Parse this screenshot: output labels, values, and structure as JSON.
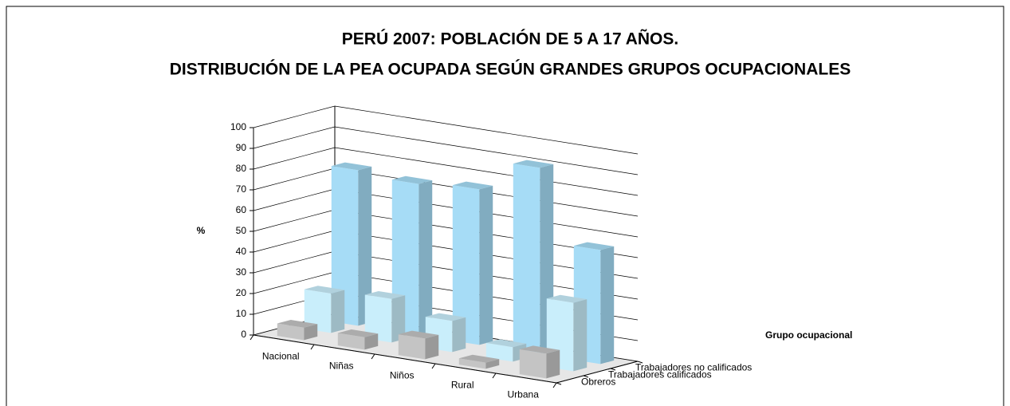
{
  "chart_data": {
    "type": "bar3d",
    "title": [
      "PERÚ 2007: POBLACIÓN DE 5 A 17 AÑOS.",
      "DISTRIBUCIÓN DE LA PEA OCUPADA SEGÚN GRANDES GRUPOS OCUPACIONALES"
    ],
    "y_label": "%",
    "z_label": "Grupo ocupacional",
    "categories": [
      "Nacional",
      "Niñas",
      "Niños",
      "Rural",
      "Urbana"
    ],
    "series": [
      {
        "name": "Obreros",
        "color": "#c4c4c4",
        "values": [
          6,
          6,
          10,
          3,
          12
        ]
      },
      {
        "name": "Trabajadores calificados",
        "color": "#c9eefb",
        "values": [
          19,
          21,
          15,
          7,
          33
        ]
      },
      {
        "name": "Trabajadores no calificados",
        "color": "#a6dcf6",
        "values": [
          75,
          73,
          75,
          90,
          55
        ]
      }
    ],
    "ylim": [
      0,
      100
    ],
    "yticks": [
      0,
      10,
      20,
      30,
      40,
      50,
      60,
      70,
      80,
      90,
      100
    ],
    "grid": true
  }
}
